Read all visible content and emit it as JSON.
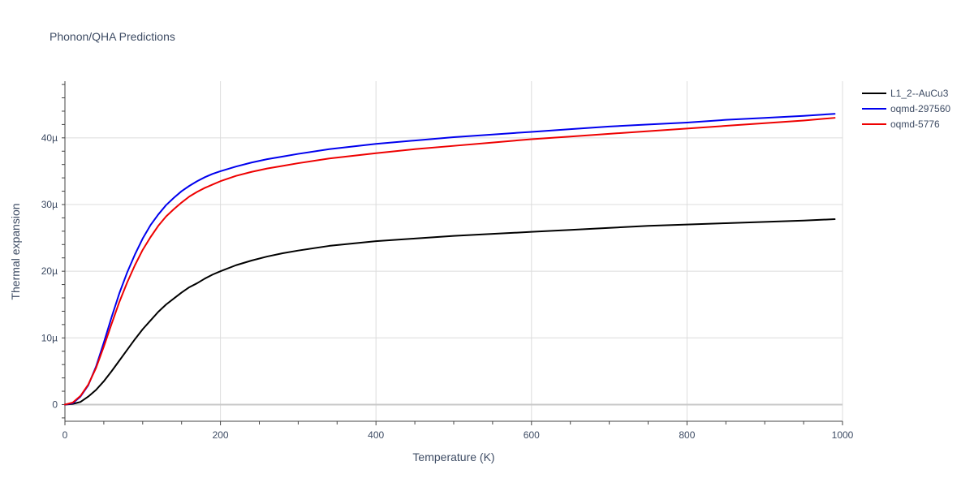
{
  "chart_data": {
    "type": "line",
    "title": "Phonon/QHA Predictions",
    "xlabel": "Temperature (K)",
    "ylabel": "Thermal expansion",
    "xlim": [
      0,
      1000
    ],
    "ylim": [
      -2.5e-06,
      4.85e-05
    ],
    "x_ticks": [
      {
        "value": 0,
        "label": "0"
      },
      {
        "value": 200,
        "label": "200"
      },
      {
        "value": 400,
        "label": "400"
      },
      {
        "value": 600,
        "label": "600"
      },
      {
        "value": 800,
        "label": "800"
      },
      {
        "value": 1000,
        "label": "1000"
      }
    ],
    "y_ticks": [
      {
        "value": 0,
        "label": "0"
      },
      {
        "value": 1e-05,
        "label": "10µ"
      },
      {
        "value": 2e-05,
        "label": "20µ"
      },
      {
        "value": 3e-05,
        "label": "30µ"
      },
      {
        "value": 4e-05,
        "label": "40µ"
      }
    ],
    "grid": true,
    "legend_position": "top-right",
    "series": [
      {
        "name": "L1_2--AuCu3",
        "color": "#000000",
        "x": [
          0,
          10,
          20,
          30,
          40,
          50,
          60,
          70,
          80,
          90,
          100,
          110,
          120,
          130,
          140,
          150,
          160,
          170,
          180,
          190,
          200,
          220,
          240,
          260,
          280,
          300,
          340,
          400,
          450,
          500,
          550,
          600,
          650,
          700,
          750,
          800,
          850,
          900,
          950,
          990
        ],
        "y": [
          0,
          1e-07,
          4e-07,
          1.2e-06,
          2.2e-06,
          3.5e-06,
          5e-06,
          6.6e-06,
          8.2e-06,
          9.8e-06,
          1.13e-05,
          1.26e-05,
          1.39e-05,
          1.5e-05,
          1.59e-05,
          1.68e-05,
          1.76e-05,
          1.82e-05,
          1.89e-05,
          1.95e-05,
          2e-05,
          2.09e-05,
          2.16e-05,
          2.22e-05,
          2.27e-05,
          2.31e-05,
          2.38e-05,
          2.45e-05,
          2.49e-05,
          2.53e-05,
          2.56e-05,
          2.59e-05,
          2.62e-05,
          2.65e-05,
          2.68e-05,
          2.7e-05,
          2.72e-05,
          2.74e-05,
          2.76e-05,
          2.78e-05
        ]
      },
      {
        "name": "oqmd-297560",
        "color": "#0000ee",
        "x": [
          0,
          10,
          20,
          30,
          40,
          50,
          60,
          70,
          80,
          90,
          100,
          110,
          120,
          130,
          140,
          150,
          160,
          170,
          180,
          190,
          200,
          220,
          240,
          260,
          280,
          300,
          340,
          400,
          450,
          500,
          550,
          600,
          650,
          700,
          750,
          800,
          850,
          900,
          950,
          990
        ],
        "y": [
          0,
          2e-07,
          1.2e-06,
          2.9e-06,
          5.7e-06,
          9.3e-06,
          1.31e-05,
          1.67e-05,
          1.98e-05,
          2.25e-05,
          2.49e-05,
          2.69e-05,
          2.85e-05,
          2.99e-05,
          3.1e-05,
          3.2e-05,
          3.28e-05,
          3.35e-05,
          3.41e-05,
          3.46e-05,
          3.5e-05,
          3.57e-05,
          3.63e-05,
          3.68e-05,
          3.72e-05,
          3.76e-05,
          3.83e-05,
          3.91e-05,
          3.96e-05,
          4.01e-05,
          4.05e-05,
          4.09e-05,
          4.13e-05,
          4.17e-05,
          4.2e-05,
          4.23e-05,
          4.27e-05,
          4.3e-05,
          4.33e-05,
          4.36e-05
        ]
      },
      {
        "name": "oqmd-5776",
        "color": "#ee0000",
        "x": [
          0,
          10,
          20,
          30,
          40,
          50,
          60,
          70,
          80,
          90,
          100,
          110,
          120,
          130,
          140,
          150,
          160,
          170,
          180,
          190,
          200,
          220,
          240,
          260,
          280,
          300,
          340,
          400,
          450,
          500,
          550,
          600,
          650,
          700,
          750,
          800,
          850,
          900,
          950,
          990
        ],
        "y": [
          0,
          3e-07,
          1.3e-06,
          3e-06,
          5.5e-06,
          8.7e-06,
          1.21e-05,
          1.54e-05,
          1.83e-05,
          2.09e-05,
          2.32e-05,
          2.51e-05,
          2.68e-05,
          2.82e-05,
          2.93e-05,
          3.03e-05,
          3.12e-05,
          3.19e-05,
          3.25e-05,
          3.3e-05,
          3.35e-05,
          3.43e-05,
          3.49e-05,
          3.54e-05,
          3.58e-05,
          3.62e-05,
          3.69e-05,
          3.77e-05,
          3.83e-05,
          3.88e-05,
          3.93e-05,
          3.98e-05,
          4.02e-05,
          4.06e-05,
          4.1e-05,
          4.14e-05,
          4.18e-05,
          4.22e-05,
          4.26e-05,
          4.3e-05
        ]
      }
    ]
  }
}
